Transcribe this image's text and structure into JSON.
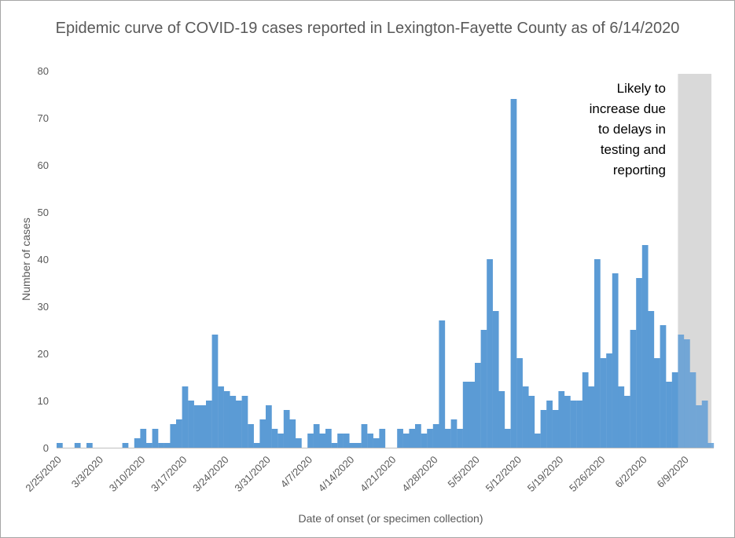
{
  "chart_data": {
    "type": "bar",
    "title": "Epidemic curve of COVID-19 cases reported in Lexington-Fayette County as of 6/14/2020",
    "xlabel": "Date of onset (or specimen collection)",
    "ylabel": "Number of cases",
    "ylim": [
      0,
      80
    ],
    "y_ticks": [
      0,
      10,
      20,
      30,
      40,
      50,
      60,
      70,
      80
    ],
    "start_date": "2/25/2020",
    "x_tick_labels": [
      "2/25/2020",
      "3/3/2020",
      "3/10/2020",
      "3/17/2020",
      "3/24/2020",
      "3/31/2020",
      "4/7/2020",
      "4/14/2020",
      "4/21/2020",
      "4/28/2020",
      "5/5/2020",
      "5/12/2020",
      "5/19/2020",
      "5/26/2020",
      "6/2/2020",
      "6/9/2020"
    ],
    "bar_color": "#5b9bd5",
    "grid": false,
    "values": [
      1,
      0,
      0,
      1,
      0,
      1,
      0,
      0,
      0,
      0,
      0,
      1,
      0,
      2,
      4,
      1,
      4,
      1,
      1,
      5,
      6,
      13,
      10,
      9,
      9,
      10,
      24,
      13,
      12,
      11,
      10,
      11,
      5,
      1,
      6,
      9,
      4,
      3,
      8,
      6,
      2,
      0,
      3,
      5,
      3,
      4,
      1,
      3,
      3,
      1,
      1,
      5,
      3,
      2,
      4,
      0,
      0,
      4,
      3,
      4,
      5,
      3,
      4,
      5,
      27,
      4,
      6,
      4,
      14,
      14,
      18,
      25,
      40,
      29,
      12,
      4,
      74,
      19,
      13,
      11,
      3,
      8,
      10,
      8,
      12,
      11,
      10,
      10,
      16,
      13,
      40,
      19,
      20,
      37,
      13,
      11,
      25,
      36,
      43,
      29,
      19,
      26,
      14,
      16,
      24,
      23,
      16,
      9,
      10,
      1
    ],
    "shaded_region": {
      "start_date": "6/8/2020",
      "end_date": "6/14/2020",
      "color": "#d9d9d9",
      "annotation": [
        "Likely to",
        "increase due",
        "to delays in",
        "testing and",
        "reporting"
      ]
    }
  }
}
